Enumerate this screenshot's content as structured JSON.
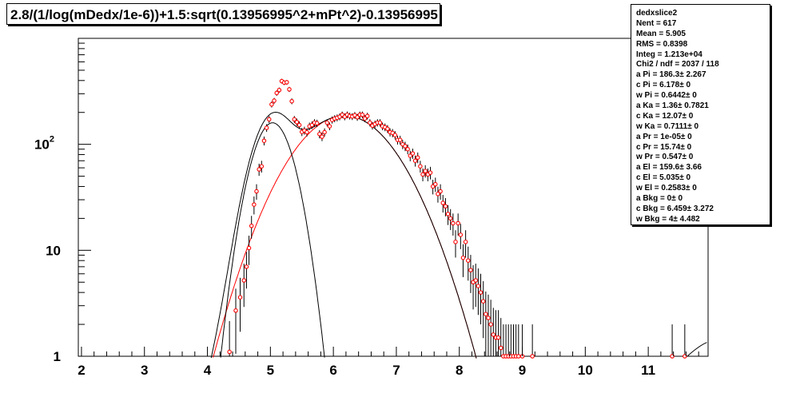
{
  "title": "2.8/(1/log(mDedx/1e-6))+1.5:sqrt(0.13956995^2+mPt^2)-0.13956995",
  "stats": {
    "name": "dedxslice2",
    "rows": [
      {
        "label": "Nent",
        "value": "617"
      },
      {
        "label": "Mean",
        "value": "5.905"
      },
      {
        "label": "RMS",
        "value": "0.8398"
      },
      {
        "label": "Integ",
        "value": "1.213e+04"
      },
      {
        "label": "Chi2 / ndf",
        "value": "2037 / 118"
      },
      {
        "label": "a Pi",
        "value": "186.3± 2.267"
      },
      {
        "label": "c Pi",
        "value": "6.178± 0"
      },
      {
        "label": "w Pi",
        "value": "0.6442± 0"
      },
      {
        "label": "a Ka",
        "value": "1.36± 0.7821"
      },
      {
        "label": "c Ka",
        "value": "12.07± 0"
      },
      {
        "label": "w Ka",
        "value": "0.7111± 0"
      },
      {
        "label": "a Pr",
        "value": "1e-05± 0"
      },
      {
        "label": "c Pr",
        "value": "15.74± 0"
      },
      {
        "label": "w Pr",
        "value": "0.547± 0"
      },
      {
        "label": "a El",
        "value": "159.6± 3.66"
      },
      {
        "label": "c El",
        "value": "5.035± 0"
      },
      {
        "label": "w El",
        "value": "0.2583± 0"
      },
      {
        "label": "a Bkg",
        "value": "0± 0"
      },
      {
        "label": "c Bkg",
        "value": "6.459± 3.272"
      },
      {
        "label": "w Bkg",
        "value": "4± 4.482"
      }
    ]
  },
  "chart_data": {
    "type": "scatter",
    "title": "2.8/(1/log(mDedx/1e-6))+1.5:sqrt(0.13956995^2+mPt^2)-0.13956995",
    "xlim": [
      1.95,
      11.95
    ],
    "ylim": [
      1,
      1000
    ],
    "y_scale": "log",
    "x_ticks": [
      "2",
      "3",
      "4",
      "5",
      "6",
      "7",
      "8",
      "9",
      "10",
      "11"
    ],
    "y_ticks": [
      "1",
      "10",
      "10²"
    ],
    "colors": {
      "points": "#ff0000",
      "fit_total": "#000000",
      "fit_electron": "#000000",
      "fit_pion": "#ff0000",
      "frame": "#000000"
    },
    "series": [
      {
        "x": [
          4.35,
          4.45,
          4.52,
          4.58,
          4.62,
          4.66,
          4.7,
          4.74,
          4.78,
          4.82,
          4.86,
          4.9,
          4.94,
          4.98,
          5.02,
          5.06,
          5.1,
          5.14,
          5.18,
          5.22,
          5.26,
          5.3,
          5.34,
          5.38,
          5.42,
          5.46,
          5.5,
          5.54,
          5.58,
          5.62,
          5.66,
          5.7,
          5.74,
          5.78,
          5.82,
          5.86,
          5.9,
          5.94,
          5.98,
          6.02,
          6.06,
          6.1,
          6.14,
          6.18,
          6.22,
          6.26,
          6.3,
          6.34,
          6.38,
          6.42,
          6.46,
          6.5,
          6.54,
          6.58,
          6.62,
          6.66,
          6.7,
          6.74,
          6.78,
          6.82,
          6.86,
          6.9,
          6.94,
          6.98,
          7.02,
          7.06,
          7.1,
          7.14,
          7.18,
          7.22,
          7.26,
          7.3,
          7.34,
          7.38,
          7.42,
          7.46,
          7.5,
          7.54,
          7.58,
          7.62,
          7.66,
          7.7,
          7.74,
          7.78,
          7.82,
          7.86,
          7.9,
          7.94,
          7.98,
          8.02,
          8.06,
          8.1,
          8.14,
          8.18,
          8.22,
          8.26,
          8.3,
          8.34,
          8.38,
          8.42,
          8.46,
          8.5,
          8.54,
          8.58,
          8.62,
          8.66,
          8.7,
          8.74,
          8.78,
          8.82,
          8.86,
          8.9,
          8.94,
          9.0,
          9.16,
          11.38,
          11.58
        ],
        "y": [
          1.1,
          2.7,
          3.6,
          5.2,
          7.0,
          10.5,
          17,
          27,
          36,
          58,
          62,
          108,
          143,
          172,
          238,
          258,
          305,
          325,
          395,
          382,
          385,
          330,
          255,
          172,
          162,
          152,
          131,
          135,
          130,
          148,
          152,
          160,
          158,
          125,
          118,
          130,
          160,
          148,
          170,
          175,
          178,
          182,
          190,
          182,
          190,
          185,
          183,
          188,
          180,
          190,
          190,
          175,
          185,
          160,
          150,
          155,
          160,
          160,
          148,
          145,
          140,
          130,
          128,
          122,
          110,
          110,
          100,
          96,
          90,
          78,
          82,
          70,
          75,
          62,
          52,
          56,
          52,
          54,
          40,
          42,
          34,
          36,
          28,
          26,
          22,
          20,
          18,
          12,
          18,
          14,
          8.5,
          12,
          8,
          6.5,
          5,
          5.2,
          4.6,
          4.0,
          3.3,
          2.5,
          2.3,
          2.0,
          1.6,
          1.5,
          1.5,
          1.2,
          1.0,
          1.0,
          1.0,
          1.0,
          1.0,
          1.0,
          1.0,
          1.0,
          1.0,
          1.0,
          1.0
        ]
      }
    ]
  }
}
